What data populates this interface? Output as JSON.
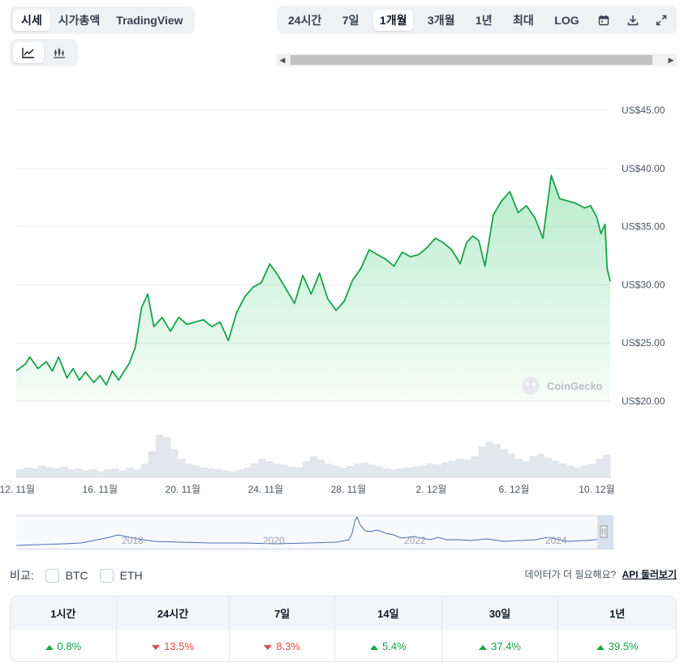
{
  "view_tabs": [
    {
      "label": "시세",
      "active": true
    },
    {
      "label": "시가총액",
      "active": false
    },
    {
      "label": "TradingView",
      "active": false
    }
  ],
  "chart_type_toggles": [
    {
      "icon": "line-chart-icon",
      "active": true
    },
    {
      "icon": "candlestick-chart-icon",
      "active": false
    }
  ],
  "range_tabs": [
    {
      "label": "24시간",
      "active": false
    },
    {
      "label": "7일",
      "active": false
    },
    {
      "label": "1개월",
      "active": true
    },
    {
      "label": "3개월",
      "active": false
    },
    {
      "label": "1년",
      "active": false
    },
    {
      "label": "최대",
      "active": false
    },
    {
      "label": "LOG",
      "active": false
    }
  ],
  "range_icons": [
    "calendar-icon",
    "download-icon",
    "expand-icon"
  ],
  "colors": {
    "up": "#16a34a",
    "down": "#ef4444",
    "line": "#16a34a",
    "navigator_line": "#4a6fb4"
  },
  "watermark": "CoinGecko",
  "chart_data": {
    "type": "area",
    "y_ticks": [
      "US$45.00",
      "US$40.00",
      "US$35.00",
      "US$30.00",
      "US$25.00",
      "US$20.00"
    ],
    "ylim": [
      20,
      45
    ],
    "x_ticks": [
      "12. 11월",
      "16. 11월",
      "20. 11월",
      "24. 11월",
      "28. 11월",
      "2. 12월",
      "6. 12월",
      "10. 12월"
    ],
    "x_range_days": [
      11.95,
      40.65
    ],
    "x": [
      11.95,
      12.4,
      12.6,
      13.0,
      13.4,
      13.7,
      14.0,
      14.4,
      14.7,
      15.0,
      15.3,
      15.7,
      16.0,
      16.3,
      16.6,
      16.9,
      17.1,
      17.4,
      17.7,
      18.0,
      18.3,
      18.6,
      19.0,
      19.4,
      19.8,
      20.2,
      20.6,
      21.0,
      21.4,
      21.8,
      22.2,
      22.6,
      23.0,
      23.4,
      23.8,
      24.2,
      24.6,
      25.0,
      25.4,
      25.8,
      26.2,
      26.6,
      27.0,
      27.4,
      27.8,
      28.2,
      28.6,
      29.0,
      29.4,
      29.8,
      30.2,
      30.6,
      31.0,
      31.4,
      31.8,
      32.2,
      32.6,
      33.0,
      33.4,
      33.7,
      34.0,
      34.3,
      34.6,
      35.0,
      35.4,
      35.8,
      36.2,
      36.6,
      37.0,
      37.4,
      37.8,
      38.2,
      38.6,
      39.0,
      39.4,
      39.7,
      40.0,
      40.2,
      40.4,
      40.5,
      40.65
    ],
    "y": [
      22.6,
      23.2,
      23.8,
      22.8,
      23.4,
      22.6,
      23.8,
      22.0,
      22.8,
      21.8,
      22.5,
      21.6,
      22.2,
      21.4,
      22.6,
      21.8,
      22.4,
      23.2,
      24.6,
      28.0,
      29.2,
      26.4,
      27.2,
      26.0,
      27.2,
      26.6,
      26.8,
      27.0,
      26.4,
      26.8,
      25.2,
      27.6,
      29.0,
      29.8,
      30.2,
      31.8,
      30.8,
      29.6,
      28.4,
      30.8,
      29.2,
      31.0,
      28.8,
      27.8,
      28.6,
      30.4,
      31.4,
      33.0,
      32.6,
      32.2,
      31.6,
      32.8,
      32.4,
      32.6,
      33.2,
      34.0,
      33.6,
      33.0,
      31.8,
      33.6,
      34.2,
      33.8,
      31.6,
      36.0,
      37.2,
      38.0,
      36.2,
      36.8,
      35.8,
      34.0,
      39.4,
      37.4,
      37.2,
      37.0,
      36.6,
      36.8,
      35.8,
      34.4,
      35.2,
      31.4,
      30.3
    ],
    "volume_relative": [
      0.18,
      0.22,
      0.2,
      0.26,
      0.22,
      0.2,
      0.24,
      0.18,
      0.2,
      0.16,
      0.18,
      0.14,
      0.18,
      0.2,
      0.16,
      0.22,
      0.18,
      0.3,
      0.55,
      0.9,
      0.85,
      0.6,
      0.4,
      0.3,
      0.26,
      0.22,
      0.2,
      0.18,
      0.16,
      0.14,
      0.18,
      0.22,
      0.3,
      0.4,
      0.35,
      0.3,
      0.28,
      0.24,
      0.22,
      0.35,
      0.45,
      0.38,
      0.3,
      0.26,
      0.22,
      0.25,
      0.3,
      0.32,
      0.28,
      0.24,
      0.2,
      0.18,
      0.2,
      0.22,
      0.24,
      0.26,
      0.3,
      0.28,
      0.32,
      0.36,
      0.4,
      0.38,
      0.45,
      0.65,
      0.75,
      0.7,
      0.6,
      0.5,
      0.4,
      0.35,
      0.45,
      0.5,
      0.42,
      0.36,
      0.3,
      0.26,
      0.22,
      0.26,
      0.3,
      0.4,
      0.48
    ]
  },
  "navigator": {
    "year_labels": [
      "2018",
      "2020",
      "2022",
      "2024"
    ]
  },
  "compare": {
    "label": "비교:",
    "options": [
      {
        "label": "BTC",
        "checked": false
      },
      {
        "label": "ETH",
        "checked": false
      }
    ]
  },
  "more_data": {
    "text": "데이터가 더 필요해요?",
    "link": "API 둘러보기"
  },
  "performance": {
    "headers": [
      "1시간",
      "24시간",
      "7일",
      "14일",
      "30일",
      "1년"
    ],
    "values": [
      {
        "text": "0.8%",
        "dir": "up"
      },
      {
        "text": "13.5%",
        "dir": "down"
      },
      {
        "text": "8.3%",
        "dir": "down"
      },
      {
        "text": "5.4%",
        "dir": "up"
      },
      {
        "text": "37.4%",
        "dir": "up"
      },
      {
        "text": "39.5%",
        "dir": "up"
      }
    ]
  }
}
